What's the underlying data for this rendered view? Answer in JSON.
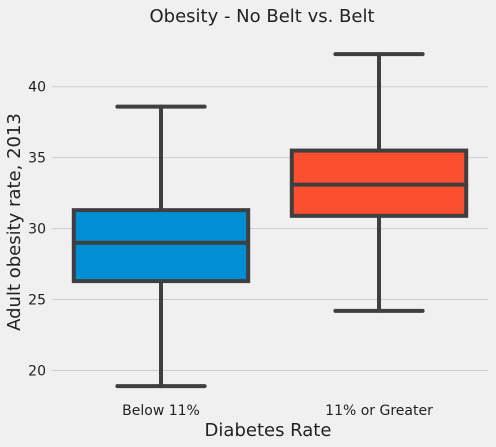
{
  "chart_data": {
    "type": "box",
    "title": "Obesity - No Belt vs. Belt",
    "xlabel": "Diabetes Rate",
    "ylabel": "Adult obesity rate, 2013",
    "ylim": [
      18.2,
      44.0
    ],
    "yticks": [
      20,
      25,
      30,
      35,
      40
    ],
    "grid": "horizontal",
    "categories": [
      "Below 11%",
      "11% or Greater"
    ],
    "boxes": [
      {
        "category": "Below 11%",
        "whisker_low": 18.9,
        "q1": 26.3,
        "median": 29.0,
        "q3": 31.3,
        "whisker_high": 38.6,
        "color": "#008fd5"
      },
      {
        "category": "11% or Greater",
        "whisker_low": 24.2,
        "q1": 30.9,
        "median": 33.1,
        "q3": 35.5,
        "whisker_high": 42.3,
        "color": "#fc4f30"
      }
    ],
    "line_color": "#3f3f3f"
  }
}
